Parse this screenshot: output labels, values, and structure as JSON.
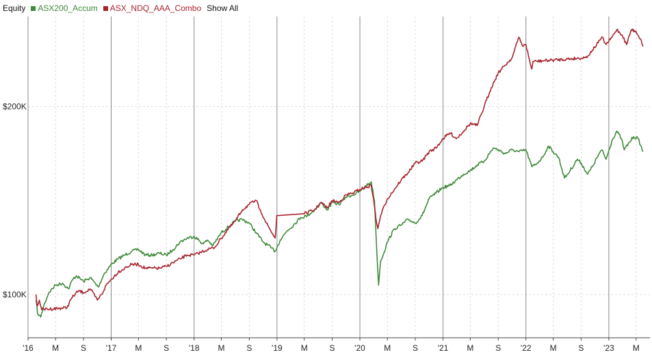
{
  "legend": {
    "title": "Equity",
    "show_all": "Show All"
  },
  "chart_data": {
    "type": "line",
    "title": "Equity",
    "xlabel": "",
    "ylabel": "",
    "ylim": [
      77000,
      248000
    ],
    "xlim": [
      "2016-01-01",
      "2023-07-01"
    ],
    "y_ticks": [
      {
        "value": 100000,
        "label": "$100K"
      },
      {
        "value": 200000,
        "label": "$200K"
      }
    ],
    "x_ticks": [
      {
        "date": "2016-01-01",
        "label": "'16",
        "major": true
      },
      {
        "date": "2016-05-01",
        "label": "M",
        "major": false
      },
      {
        "date": "2016-09-01",
        "label": "S",
        "major": false
      },
      {
        "date": "2017-01-01",
        "label": "'17",
        "major": true
      },
      {
        "date": "2017-05-01",
        "label": "M",
        "major": false
      },
      {
        "date": "2017-09-01",
        "label": "S",
        "major": false
      },
      {
        "date": "2018-01-01",
        "label": "'18",
        "major": true
      },
      {
        "date": "2018-05-01",
        "label": "M",
        "major": false
      },
      {
        "date": "2018-09-01",
        "label": "S",
        "major": false
      },
      {
        "date": "2019-01-01",
        "label": "'19",
        "major": true
      },
      {
        "date": "2019-05-01",
        "label": "M",
        "major": false
      },
      {
        "date": "2019-09-01",
        "label": "S",
        "major": false
      },
      {
        "date": "2020-01-01",
        "label": "'20",
        "major": true
      },
      {
        "date": "2020-05-01",
        "label": "M",
        "major": false
      },
      {
        "date": "2020-09-01",
        "label": "S",
        "major": false
      },
      {
        "date": "2021-01-01",
        "label": "'21",
        "major": true
      },
      {
        "date": "2021-05-01",
        "label": "M",
        "major": false
      },
      {
        "date": "2021-09-01",
        "label": "S",
        "major": false
      },
      {
        "date": "2022-01-01",
        "label": "'22",
        "major": true
      },
      {
        "date": "2022-05-01",
        "label": "M",
        "major": false
      },
      {
        "date": "2022-09-01",
        "label": "S",
        "major": false
      },
      {
        "date": "2023-01-01",
        "label": "'23",
        "major": true
      },
      {
        "date": "2023-05-01",
        "label": "M",
        "major": false
      }
    ],
    "grid": true,
    "legend_position": "top-left",
    "series": [
      {
        "name": "ASX200_Accum",
        "color": "#3f8a3a",
        "points": [
          [
            "2016-02-05",
            97000
          ],
          [
            "2016-02-12",
            90000
          ],
          [
            "2016-02-20",
            89000
          ],
          [
            "2016-02-26",
            88000
          ],
          [
            "2016-03-10",
            94000
          ],
          [
            "2016-04-01",
            101000
          ],
          [
            "2016-05-01",
            105000
          ],
          [
            "2016-06-01",
            106000
          ],
          [
            "2016-06-27",
            103000
          ],
          [
            "2016-07-15",
            108000
          ],
          [
            "2016-08-01",
            110000
          ],
          [
            "2016-09-01",
            107000
          ],
          [
            "2016-10-01",
            109000
          ],
          [
            "2016-11-05",
            104000
          ],
          [
            "2016-12-01",
            111000
          ],
          [
            "2017-01-01",
            116000
          ],
          [
            "2017-02-01",
            119000
          ],
          [
            "2017-03-01",
            121000
          ],
          [
            "2017-04-01",
            123000
          ],
          [
            "2017-05-01",
            124000
          ],
          [
            "2017-06-01",
            121000
          ],
          [
            "2017-07-01",
            121000
          ],
          [
            "2017-08-01",
            122000
          ],
          [
            "2017-09-01",
            121000
          ],
          [
            "2017-10-01",
            124000
          ],
          [
            "2017-11-01",
            128000
          ],
          [
            "2017-12-01",
            130000
          ],
          [
            "2018-01-01",
            131000
          ],
          [
            "2018-02-10",
            127000
          ],
          [
            "2018-03-01",
            129000
          ],
          [
            "2018-03-25",
            126000
          ],
          [
            "2018-05-01",
            133000
          ],
          [
            "2018-06-01",
            136000
          ],
          [
            "2018-07-01",
            139000
          ],
          [
            "2018-08-01",
            140000
          ],
          [
            "2018-09-01",
            138000
          ],
          [
            "2018-10-01",
            133000
          ],
          [
            "2018-11-01",
            128000
          ],
          [
            "2018-12-05",
            125000
          ],
          [
            "2018-12-24",
            123000
          ],
          [
            "2019-01-15",
            129000
          ],
          [
            "2019-02-15",
            134000
          ],
          [
            "2019-03-15",
            137000
          ],
          [
            "2019-04-15",
            141000
          ],
          [
            "2019-05-15",
            142000
          ],
          [
            "2019-06-15",
            145000
          ],
          [
            "2019-07-15",
            149000
          ],
          [
            "2019-08-10",
            145000
          ],
          [
            "2019-09-01",
            149000
          ],
          [
            "2019-10-01",
            148000
          ],
          [
            "2019-11-01",
            152000
          ],
          [
            "2019-12-01",
            153000
          ],
          [
            "2020-01-01",
            155000
          ],
          [
            "2020-02-20",
            160000
          ],
          [
            "2020-03-05",
            150000
          ],
          [
            "2020-03-12",
            132000
          ],
          [
            "2020-03-20",
            112000
          ],
          [
            "2020-03-23",
            105000
          ],
          [
            "2020-04-01",
            118000
          ],
          [
            "2020-04-15",
            122000
          ],
          [
            "2020-05-01",
            128000
          ],
          [
            "2020-06-01",
            135000
          ],
          [
            "2020-07-01",
            137000
          ],
          [
            "2020-08-01",
            140000
          ],
          [
            "2020-09-01",
            138000
          ],
          [
            "2020-10-01",
            142000
          ],
          [
            "2020-11-01",
            151000
          ],
          [
            "2020-12-01",
            154000
          ],
          [
            "2021-01-01",
            157000
          ],
          [
            "2021-02-01",
            158000
          ],
          [
            "2021-03-01",
            161000
          ],
          [
            "2021-04-01",
            164000
          ],
          [
            "2021-05-01",
            166000
          ],
          [
            "2021-06-01",
            169000
          ],
          [
            "2021-07-01",
            171000
          ],
          [
            "2021-08-10",
            178000
          ],
          [
            "2021-09-01",
            177000
          ],
          [
            "2021-10-01",
            175000
          ],
          [
            "2021-11-01",
            177000
          ],
          [
            "2021-12-01",
            176000
          ],
          [
            "2022-01-01",
            177000
          ],
          [
            "2022-01-27",
            168000
          ],
          [
            "2022-02-20",
            170000
          ],
          [
            "2022-03-15",
            173000
          ],
          [
            "2022-04-10",
            179000
          ],
          [
            "2022-05-01",
            176000
          ],
          [
            "2022-05-25",
            173000
          ],
          [
            "2022-06-20",
            162000
          ],
          [
            "2022-07-15",
            166000
          ],
          [
            "2022-08-15",
            172000
          ],
          [
            "2022-09-01",
            170000
          ],
          [
            "2022-09-30",
            164000
          ],
          [
            "2022-10-20",
            168000
          ],
          [
            "2022-11-15",
            174000
          ],
          [
            "2022-12-01",
            177000
          ],
          [
            "2022-12-20",
            172000
          ],
          [
            "2023-01-15",
            182000
          ],
          [
            "2023-02-05",
            187000
          ],
          [
            "2023-02-25",
            183000
          ],
          [
            "2023-03-10",
            177000
          ],
          [
            "2023-04-01",
            181000
          ],
          [
            "2023-04-20",
            184000
          ],
          [
            "2023-05-10",
            183000
          ],
          [
            "2023-05-31",
            176000
          ]
        ]
      },
      {
        "name": "ASX_NDQ_AAA_Combo",
        "color": "#a8232d",
        "points": [
          [
            "2016-02-05",
            100000
          ],
          [
            "2016-02-10",
            94000
          ],
          [
            "2016-02-20",
            97000
          ],
          [
            "2016-02-28",
            93000
          ],
          [
            "2016-03-01",
            92000
          ],
          [
            "2016-06-20",
            93000
          ],
          [
            "2016-07-10",
            98000
          ],
          [
            "2016-08-10",
            102000
          ],
          [
            "2016-09-01",
            101000
          ],
          [
            "2016-10-01",
            103000
          ],
          [
            "2016-11-01",
            97000
          ],
          [
            "2016-11-20",
            100000
          ],
          [
            "2016-12-10",
            105000
          ],
          [
            "2017-01-01",
            108000
          ],
          [
            "2017-02-01",
            112000
          ],
          [
            "2017-03-01",
            114000
          ],
          [
            "2017-04-01",
            116000
          ],
          [
            "2017-05-01",
            116000
          ],
          [
            "2017-06-01",
            114000
          ],
          [
            "2017-07-01",
            114000
          ],
          [
            "2017-08-01",
            114000
          ],
          [
            "2017-09-01",
            115000
          ],
          [
            "2017-10-01",
            117000
          ],
          [
            "2017-11-01",
            119000
          ],
          [
            "2017-12-01",
            121000
          ],
          [
            "2018-01-01",
            121000
          ],
          [
            "2018-02-10",
            123000
          ],
          [
            "2018-03-01",
            124000
          ],
          [
            "2018-04-01",
            125000
          ],
          [
            "2018-05-01",
            130000
          ],
          [
            "2018-06-01",
            135000
          ],
          [
            "2018-07-01",
            139000
          ],
          [
            "2018-08-01",
            145000
          ],
          [
            "2018-09-01",
            148000
          ],
          [
            "2018-10-01",
            150000
          ],
          [
            "2018-10-20",
            145000
          ],
          [
            "2018-11-15",
            138000
          ],
          [
            "2018-12-24",
            130000
          ],
          [
            "2018-12-31",
            142000
          ],
          [
            "2019-05-01",
            143000
          ],
          [
            "2019-06-15",
            145000
          ],
          [
            "2019-07-15",
            149000
          ],
          [
            "2019-08-10",
            146000
          ],
          [
            "2019-09-01",
            150000
          ],
          [
            "2019-10-01",
            149000
          ],
          [
            "2019-11-01",
            153000
          ],
          [
            "2019-12-01",
            154000
          ],
          [
            "2020-01-01",
            156000
          ],
          [
            "2020-02-20",
            158000
          ],
          [
            "2020-03-01",
            151000
          ],
          [
            "2020-03-12",
            140000
          ],
          [
            "2020-03-20",
            135000
          ],
          [
            "2020-04-01",
            142000
          ],
          [
            "2020-05-01",
            151000
          ],
          [
            "2020-06-01",
            156000
          ],
          [
            "2020-07-01",
            161000
          ],
          [
            "2020-08-01",
            165000
          ],
          [
            "2020-09-01",
            170000
          ],
          [
            "2020-10-01",
            171000
          ],
          [
            "2020-11-01",
            176000
          ],
          [
            "2020-12-01",
            178000
          ],
          [
            "2021-01-01",
            183000
          ],
          [
            "2021-02-01",
            186000
          ],
          [
            "2021-03-01",
            183000
          ],
          [
            "2021-04-01",
            187000
          ],
          [
            "2021-05-01",
            191000
          ],
          [
            "2021-06-01",
            190000
          ],
          [
            "2021-07-01",
            200000
          ],
          [
            "2021-08-01",
            210000
          ],
          [
            "2021-09-01",
            218000
          ],
          [
            "2021-10-01",
            222000
          ],
          [
            "2021-11-01",
            226000
          ],
          [
            "2021-12-01",
            237000
          ],
          [
            "2021-12-20",
            232000
          ],
          [
            "2022-01-01",
            233000
          ],
          [
            "2022-01-20",
            223000
          ],
          [
            "2022-01-27",
            220000
          ],
          [
            "2022-02-01",
            224000
          ],
          [
            "2022-09-15",
            226000
          ],
          [
            "2022-10-01",
            227000
          ],
          [
            "2022-10-20",
            230000
          ],
          [
            "2022-11-15",
            234000
          ],
          [
            "2022-12-01",
            237000
          ],
          [
            "2022-12-20",
            233000
          ],
          [
            "2023-01-15",
            237000
          ],
          [
            "2023-02-05",
            241000
          ],
          [
            "2023-03-01",
            238000
          ],
          [
            "2023-03-20",
            233000
          ],
          [
            "2023-04-10",
            241000
          ],
          [
            "2023-05-01",
            240000
          ],
          [
            "2023-05-20",
            236000
          ],
          [
            "2023-05-31",
            232000
          ]
        ]
      }
    ]
  }
}
